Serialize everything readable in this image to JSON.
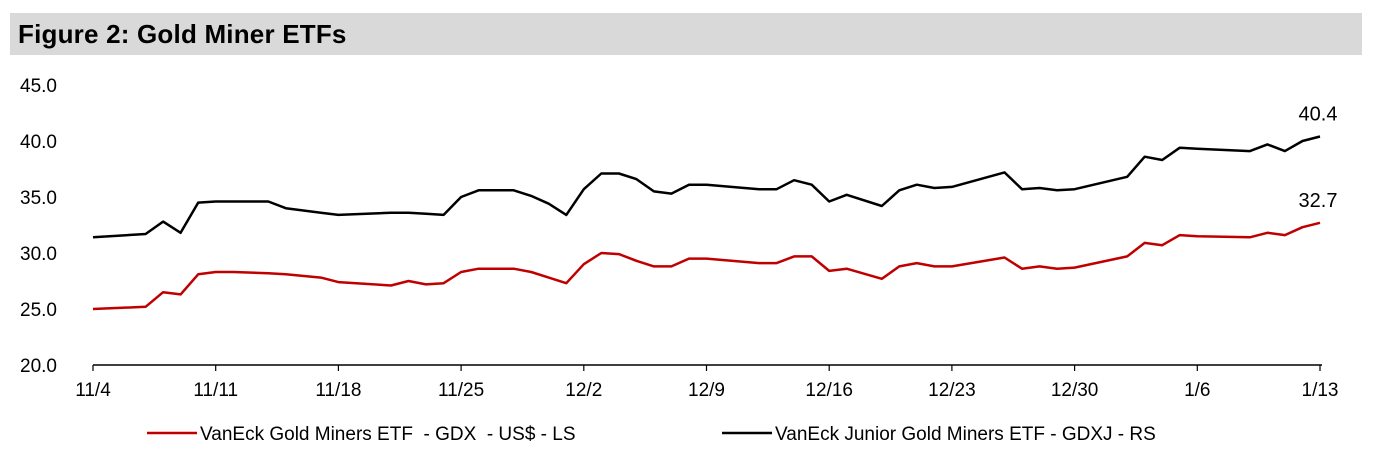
{
  "title": "Figure 2: Gold Miner ETFs",
  "chart_data": {
    "type": "line",
    "ylim": [
      20.0,
      45.0
    ],
    "yticks": [
      "20.0",
      "25.0",
      "30.0",
      "35.0",
      "40.0",
      "45.0"
    ],
    "ytick_values": [
      20,
      25,
      30,
      35,
      40,
      45
    ],
    "x_start": 0,
    "x_end": 70,
    "xticks": [
      {
        "label": "11/4",
        "x": 0
      },
      {
        "label": "11/11",
        "x": 7
      },
      {
        "label": "11/18",
        "x": 14
      },
      {
        "label": "11/25",
        "x": 21
      },
      {
        "label": "12/2",
        "x": 28
      },
      {
        "label": "12/9",
        "x": 35
      },
      {
        "label": "12/16",
        "x": 42
      },
      {
        "label": "12/23",
        "x": 49
      },
      {
        "label": "12/30",
        "x": 56
      },
      {
        "label": "1/6",
        "x": 63
      },
      {
        "label": "1/13",
        "x": 70
      }
    ],
    "series": [
      {
        "name": "VanEck Gold Miners ETF  - GDX  - US$ - LS",
        "color": "#c00000",
        "x": [
          0,
          3,
          4,
          5,
          6,
          7,
          8,
          10,
          11,
          13,
          14,
          17,
          18,
          19,
          20,
          21,
          22,
          24,
          25,
          26,
          27,
          28,
          29,
          30,
          31,
          32,
          33,
          34,
          35,
          38,
          39,
          40,
          41,
          42,
          43,
          45,
          46,
          47,
          48,
          49,
          52,
          53,
          54,
          55,
          56,
          59,
          60,
          61,
          62,
          63,
          66,
          67,
          68,
          69,
          70
        ],
        "values": [
          25.0,
          25.2,
          26.5,
          26.3,
          28.1,
          28.3,
          28.3,
          28.2,
          28.1,
          27.8,
          27.4,
          27.1,
          27.5,
          27.2,
          27.3,
          28.3,
          28.6,
          28.6,
          28.3,
          27.8,
          27.3,
          29.0,
          30.0,
          29.9,
          29.3,
          28.8,
          28.8,
          29.5,
          29.5,
          29.1,
          29.1,
          29.7,
          29.7,
          28.4,
          28.6,
          27.7,
          28.8,
          29.1,
          28.8,
          28.8,
          29.6,
          28.6,
          28.8,
          28.6,
          28.7,
          29.7,
          30.9,
          30.7,
          31.6,
          31.5,
          31.4,
          31.8,
          31.6,
          32.3,
          32.7
        ]
      },
      {
        "name": "VanEck Junior Gold Miners ETF - GDXJ - RS",
        "color": "#000000",
        "x": [
          0,
          3,
          4,
          5,
          6,
          7,
          8,
          10,
          11,
          13,
          14,
          17,
          18,
          19,
          20,
          21,
          22,
          24,
          25,
          26,
          27,
          28,
          29,
          30,
          31,
          32,
          33,
          34,
          35,
          38,
          39,
          40,
          41,
          42,
          43,
          45,
          46,
          47,
          48,
          49,
          52,
          53,
          54,
          55,
          56,
          59,
          60,
          61,
          62,
          63,
          66,
          67,
          68,
          69,
          70
        ],
        "values": [
          31.4,
          31.7,
          32.8,
          31.8,
          34.5,
          34.6,
          34.6,
          34.6,
          34.0,
          33.6,
          33.4,
          33.6,
          33.6,
          33.5,
          33.4,
          35.0,
          35.6,
          35.6,
          35.1,
          34.4,
          33.4,
          35.7,
          37.1,
          37.1,
          36.6,
          35.5,
          35.3,
          36.1,
          36.1,
          35.7,
          35.7,
          36.5,
          36.1,
          34.6,
          35.2,
          34.2,
          35.6,
          36.1,
          35.8,
          35.9,
          37.2,
          35.7,
          35.8,
          35.6,
          35.7,
          36.8,
          38.6,
          38.3,
          39.4,
          39.3,
          39.1,
          39.7,
          39.1,
          40.0,
          40.4
        ]
      }
    ],
    "end_labels": [
      "32.7",
      "40.4"
    ],
    "legend_position": "bottom"
  }
}
